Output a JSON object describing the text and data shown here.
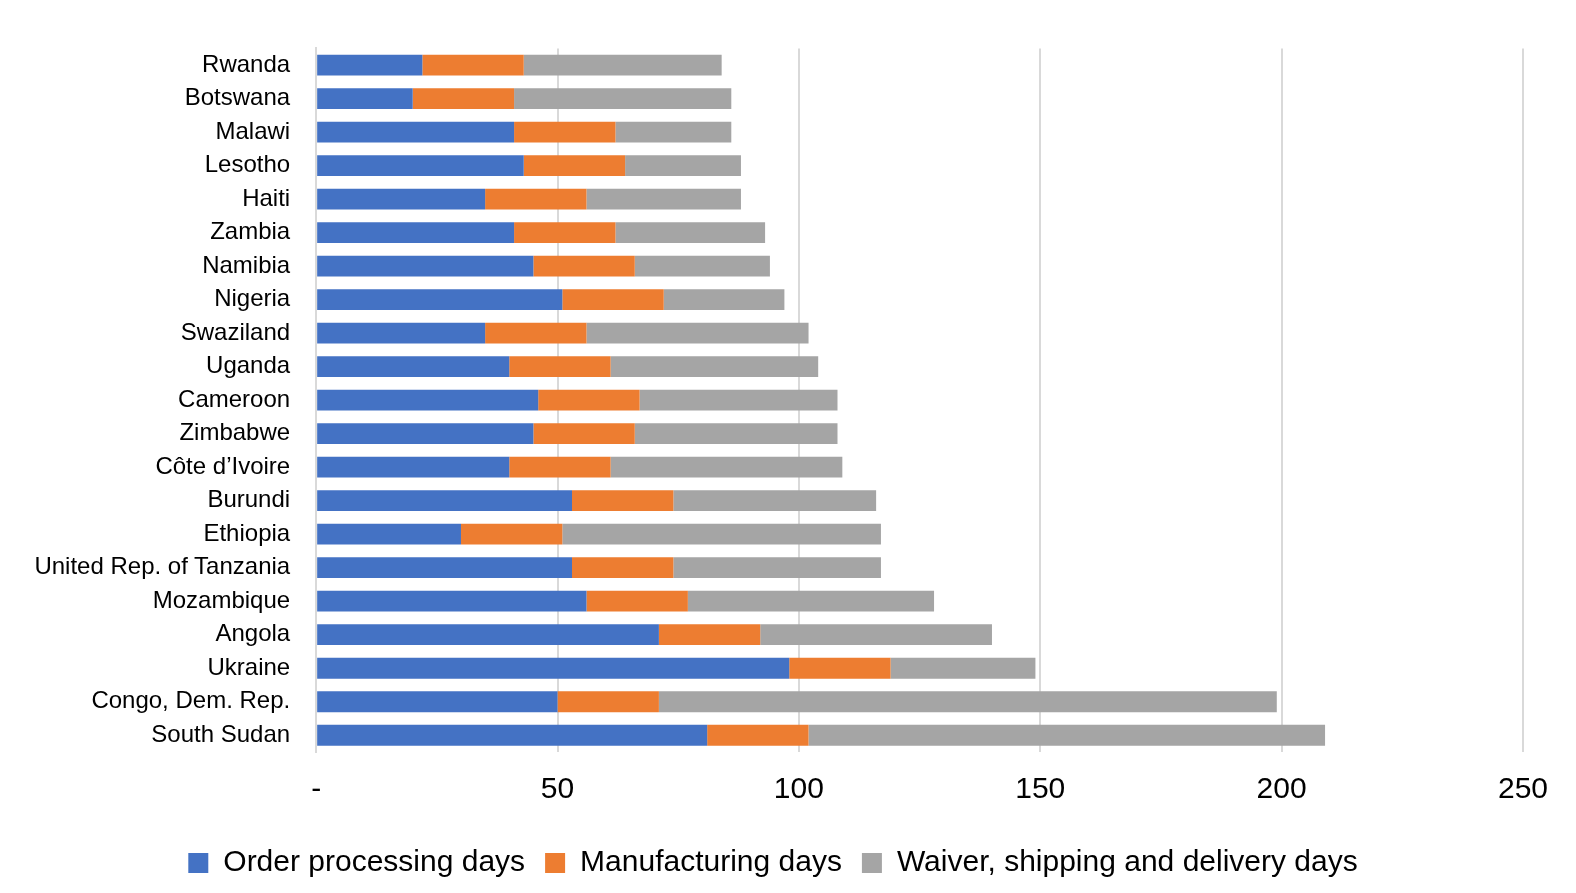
{
  "chart_data": {
    "type": "bar",
    "orientation": "horizontal",
    "stacked": true,
    "categories": [
      "Rwanda",
      "Botswana",
      "Malawi",
      "Lesotho",
      "Haiti",
      "Zambia",
      "Namibia",
      "Nigeria",
      "Swaziland",
      "Uganda",
      "Cameroon",
      "Zimbabwe",
      "Côte d’Ivoire",
      "Burundi",
      "Ethiopia",
      "United Rep. of Tanzania",
      "Mozambique",
      "Angola",
      "Ukraine",
      "Congo, Dem. Rep.",
      "South Sudan"
    ],
    "series": [
      {
        "name": "Order processing days",
        "color": "#4472c4",
        "values": [
          22,
          20,
          41,
          43,
          35,
          41,
          45,
          51,
          35,
          40,
          46,
          45,
          40,
          53,
          30,
          53,
          56,
          71,
          98,
          50,
          81
        ]
      },
      {
        "name": "Manufacturing days",
        "color": "#ed7d31",
        "values": [
          21,
          21,
          21,
          21,
          21,
          21,
          21,
          21,
          21,
          21,
          21,
          21,
          21,
          21,
          21,
          21,
          21,
          21,
          21,
          21,
          21
        ]
      },
      {
        "name": "Waiver, shipping and delivery days",
        "color": "#a5a5a5",
        "values": [
          41,
          45,
          24,
          24,
          32,
          31,
          28,
          25,
          46,
          43,
          41,
          42,
          48,
          42,
          66,
          43,
          51,
          48,
          30,
          128,
          107
        ]
      }
    ],
    "xlim": [
      0,
      250
    ],
    "xticks": [
      {
        "value": 0,
        "label": "-"
      },
      50,
      100,
      150,
      200,
      250
    ],
    "grid": "x",
    "legend": "bottom"
  }
}
